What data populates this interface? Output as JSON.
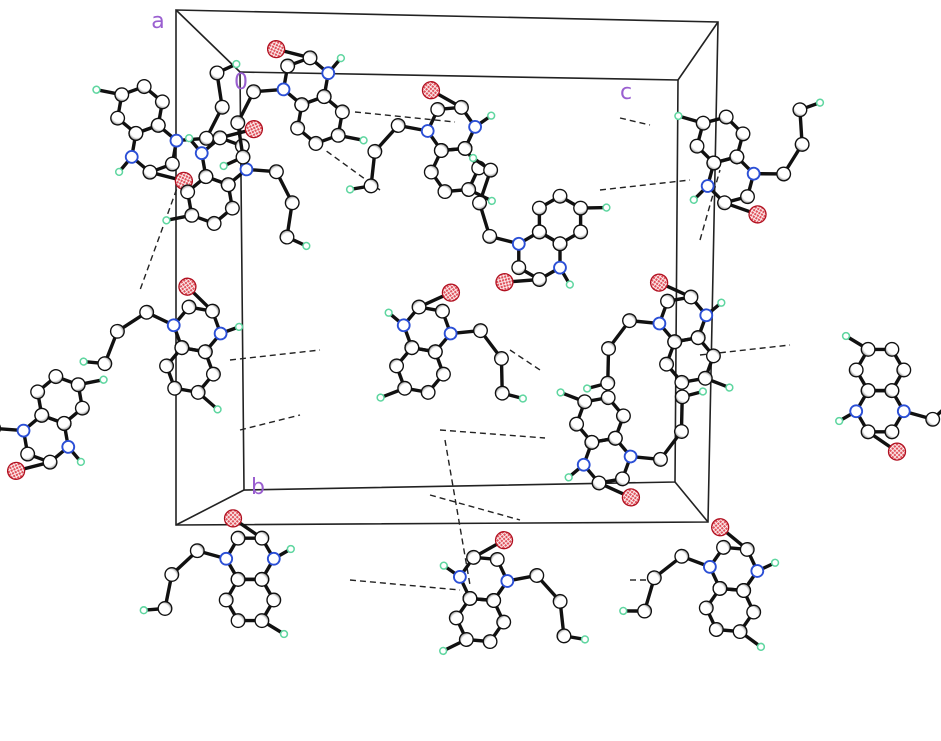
{
  "axis_labels": {
    "a": "a",
    "origin": "0",
    "b": "b",
    "c": "c"
  }
}
